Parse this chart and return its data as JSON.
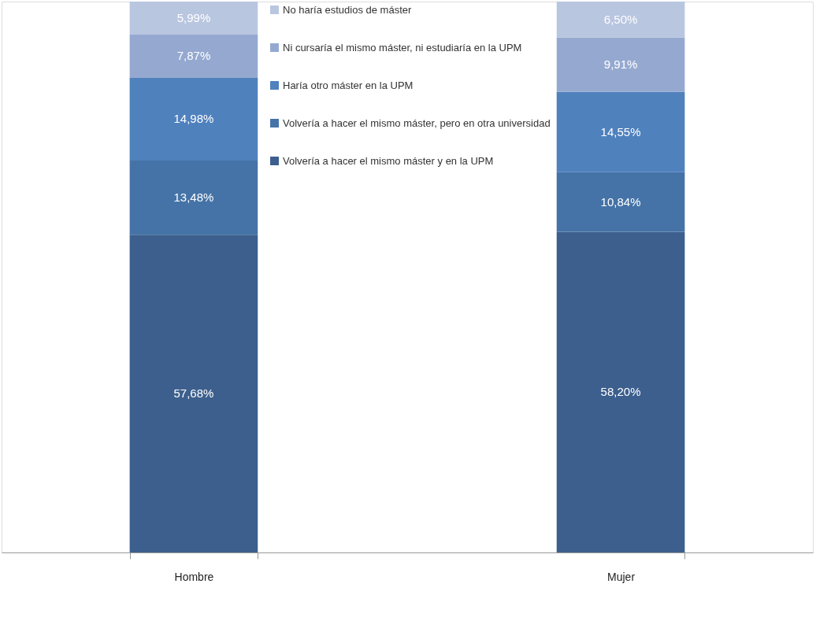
{
  "chart_data": {
    "type": "bar",
    "stacked": true,
    "categories": [
      "Hombre",
      "Mujer"
    ],
    "legend": "top",
    "series": [
      {
        "name": "Volvería a hacer el mismo máster  y en la UPM",
        "color": "#3c5f8d",
        "values": [
          57.68,
          58.2
        ],
        "value_labels": [
          "57,68%",
          "58,20%"
        ]
      },
      {
        "name": "Volvería a hacer el mismo máster, pero en otra universidad",
        "color": "#4573a7",
        "values": [
          13.48,
          10.84
        ],
        "value_labels": [
          "13,48%",
          "10,84%"
        ]
      },
      {
        "name": "Haría otro máster en la UPM",
        "color": "#4f81bd",
        "values": [
          14.98,
          14.55
        ],
        "value_labels": [
          "14,98%",
          "14,55%"
        ]
      },
      {
        "name": "Ni cursaría el mismo máster, ni estudiaría en la UPM",
        "color": "#95a9d0",
        "values": [
          7.87,
          9.91
        ],
        "value_labels": [
          "7,87%",
          "9,91%"
        ]
      },
      {
        "name": "No haría estudios de máster",
        "color": "#b9c6e0",
        "values": [
          5.99,
          6.5
        ],
        "value_labels": [
          "5,99%",
          "6,50%"
        ]
      }
    ]
  }
}
